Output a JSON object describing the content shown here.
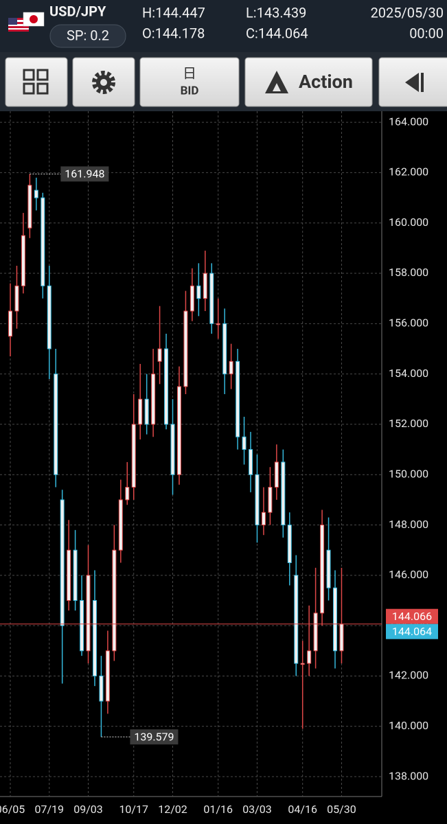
{
  "header": {
    "symbol": "USD/JPY",
    "spread": "SP: 0.2",
    "high": "H:144.447",
    "low": "L:143.439",
    "open": "O:144.178",
    "close": "C:144.064",
    "date": "2025/05/30",
    "time": "00:00"
  },
  "toolbar": {
    "period": "日",
    "price_type": "BID",
    "action": "Action"
  },
  "chart_data": {
    "type": "candlestick",
    "categories": [
      "06/05",
      null,
      null,
      null,
      null,
      null,
      "07/19",
      null,
      null,
      null,
      null,
      null,
      "09/03",
      null,
      null,
      null,
      null,
      null,
      null,
      "10/17",
      null,
      null,
      null,
      null,
      null,
      "12/02",
      null,
      null,
      null,
      null,
      null,
      null,
      "01/16",
      null,
      null,
      null,
      null,
      null,
      "03/03",
      null,
      null,
      null,
      null,
      null,
      null,
      "04/16",
      null,
      null,
      null,
      null,
      null,
      "05/30"
    ],
    "open": [
      155.5,
      156.5,
      157.5,
      159.8,
      161.3,
      161.0,
      157.5,
      154.0,
      149.0,
      145.0,
      147.0,
      145.0,
      143.0,
      145.0,
      142.0,
      141.0,
      143.0,
      147.0,
      149.0,
      149.5,
      152.0,
      153.0,
      152.0,
      154.5,
      155.0,
      152.0,
      150.0,
      153.5,
      156.5,
      157.5,
      157.0,
      158.0,
      156.0,
      156.0,
      154.0,
      154.5,
      151.5,
      151.0,
      150.0,
      148.0,
      148.5,
      149.5,
      150.5,
      148.0,
      146.0,
      142.5,
      142.5,
      143.0,
      144.5,
      147.0,
      145.5,
      143.0
    ],
    "high": [
      157.6,
      158.3,
      160.4,
      161.948,
      161.8,
      161.2,
      158.3,
      155.0,
      149.4,
      148.2,
      147.8,
      146.0,
      147.2,
      146.2,
      142.8,
      143.8,
      148.0,
      149.8,
      150.5,
      153.2,
      154.4,
      154.0,
      155.0,
      156.7,
      155.6,
      153.0,
      154.3,
      157.3,
      158.2,
      158.4,
      158.9,
      158.4,
      157.0,
      156.6,
      155.2,
      155.0,
      152.3,
      151.7,
      150.8,
      149.5,
      150.3,
      151.2,
      151.0,
      148.5,
      146.8,
      143.4,
      144.8,
      146.3,
      148.6,
      148.3,
      146.2,
      146.3
    ],
    "low": [
      154.7,
      155.8,
      157.2,
      159.4,
      160.5,
      157.0,
      153.8,
      149.5,
      141.7,
      144.6,
      144.6,
      142.8,
      142.5,
      141.6,
      139.579,
      140.5,
      142.6,
      146.5,
      148.8,
      149.0,
      151.4,
      151.6,
      151.5,
      153.6,
      151.8,
      149.2,
      149.6,
      153.2,
      156.1,
      156.3,
      156.5,
      155.6,
      155.4,
      153.2,
      153.4,
      151.0,
      150.4,
      149.3,
      147.3,
      147.6,
      148.0,
      149.0,
      147.5,
      145.6,
      142.0,
      139.9,
      142.0,
      142.3,
      144.0,
      145.0,
      142.3,
      142.5
    ],
    "close": [
      156.5,
      157.5,
      159.5,
      161.5,
      161.0,
      157.5,
      155.0,
      150.0,
      144.0,
      147.0,
      145.0,
      143.0,
      146.0,
      142.0,
      141.0,
      143.0,
      147.0,
      149.0,
      149.5,
      152.0,
      153.0,
      152.0,
      154.0,
      155.0,
      152.0,
      150.0,
      153.5,
      156.5,
      157.5,
      157.0,
      158.0,
      156.0,
      156.0,
      154.0,
      154.5,
      151.5,
      151.0,
      150.0,
      148.0,
      148.5,
      149.5,
      150.5,
      148.0,
      146.5,
      142.5,
      142.5,
      143.0,
      144.5,
      148.0,
      145.5,
      143.0,
      144.064
    ],
    "up_color": "#e04848",
    "down_color": "#35b8dc",
    "ylim": [
      137.21,
      164.44
    ],
    "yticks": [
      {
        "value": 138,
        "label": "138.000"
      },
      {
        "value": 140,
        "label": "140.000"
      },
      {
        "value": 142,
        "label": "142.000"
      },
      {
        "value": 144,
        "label": "144.000"
      },
      {
        "value": 146,
        "label": "146.000"
      },
      {
        "value": 148,
        "label": "148.000"
      },
      {
        "value": 150,
        "label": "150.000"
      },
      {
        "value": 152,
        "label": "152.000"
      },
      {
        "value": 154,
        "label": "154.000"
      },
      {
        "value": 156,
        "label": "156.000"
      },
      {
        "value": 158,
        "label": "158.000"
      },
      {
        "value": 160,
        "label": "160.000"
      },
      {
        "value": 162,
        "label": "162.000"
      },
      {
        "value": 164,
        "label": "164.000"
      }
    ],
    "grid": true,
    "max_label": {
      "index": 3,
      "value": 161.948
    },
    "min_label": {
      "index": 14,
      "value": 139.579
    },
    "ask_price": {
      "value": 144.066,
      "color": "#e04848"
    },
    "bid_price": {
      "value": 144.064,
      "color": "#35b8dc"
    }
  }
}
